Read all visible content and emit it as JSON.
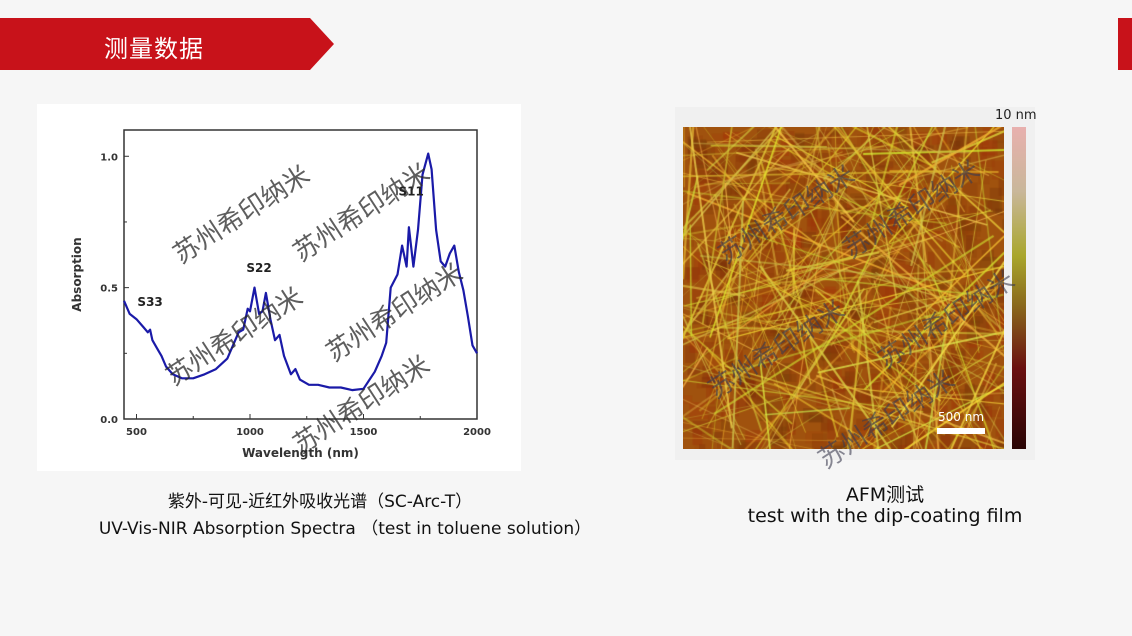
{
  "header": {
    "title": "测量数据"
  },
  "colors": {
    "accent": "#c8121a",
    "curve": "#1a1aa8"
  },
  "watermark": "苏州希印纳米",
  "chart_data": {
    "type": "line",
    "xlabel": "Wavelength (nm)",
    "ylabel": "Absorption",
    "xlim": [
      445,
      2000
    ],
    "ylim": [
      0,
      1.1
    ],
    "xticks": [
      500,
      1000,
      1500,
      2000
    ],
    "yticks": [
      0.0,
      0.5,
      1.0
    ],
    "ytick_labels": [
      "0.0",
      "0.5",
      "1.0"
    ],
    "grid": false,
    "annotations": [
      {
        "text": "S33",
        "x": 560,
        "y": 0.43
      },
      {
        "text": "S22",
        "x": 1040,
        "y": 0.56
      },
      {
        "text": "S11",
        "x": 1710,
        "y": 0.85
      }
    ],
    "x": [
      445,
      470,
      500,
      530,
      550,
      560,
      570,
      590,
      610,
      630,
      660,
      700,
      750,
      800,
      850,
      900,
      930,
      950,
      970,
      990,
      1000,
      1020,
      1040,
      1055,
      1070,
      1090,
      1110,
      1130,
      1150,
      1180,
      1200,
      1220,
      1260,
      1300,
      1350,
      1400,
      1450,
      1500,
      1550,
      1580,
      1600,
      1620,
      1650,
      1670,
      1690,
      1700,
      1720,
      1740,
      1760,
      1785,
      1800,
      1820,
      1840,
      1860,
      1880,
      1900,
      1920,
      1940,
      1960,
      1980,
      2000
    ],
    "y": [
      0.45,
      0.4,
      0.38,
      0.35,
      0.33,
      0.34,
      0.3,
      0.27,
      0.24,
      0.2,
      0.17,
      0.155,
      0.155,
      0.17,
      0.19,
      0.23,
      0.29,
      0.33,
      0.34,
      0.42,
      0.41,
      0.5,
      0.4,
      0.41,
      0.48,
      0.38,
      0.3,
      0.32,
      0.24,
      0.17,
      0.19,
      0.15,
      0.13,
      0.13,
      0.12,
      0.12,
      0.11,
      0.115,
      0.18,
      0.24,
      0.29,
      0.5,
      0.55,
      0.66,
      0.58,
      0.73,
      0.58,
      0.72,
      0.93,
      1.01,
      0.95,
      0.72,
      0.6,
      0.58,
      0.63,
      0.66,
      0.56,
      0.49,
      0.39,
      0.28,
      0.25
    ]
  },
  "captions": {
    "left_line1": "紫外-可见-近红外吸收光谱（SC-Arc-T）",
    "left_line2": "UV-Vis-NIR Absorption Spectra （test in toluene solution）",
    "right_line1": "AFM测试",
    "right_line2": "test with the dip-coating film"
  },
  "afm": {
    "colorbar_max": "10 nm",
    "scale_bar": "500 nm"
  }
}
